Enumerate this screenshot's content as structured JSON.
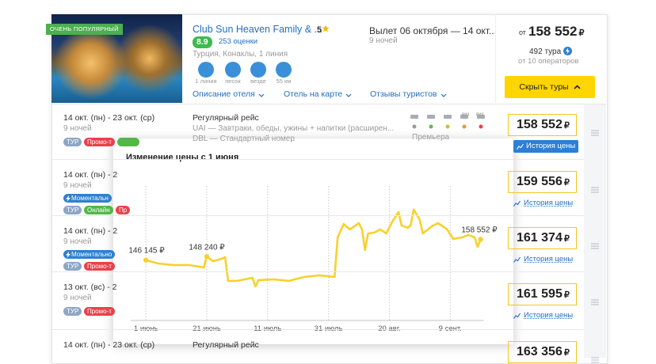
{
  "hotel": {
    "badge": "ОЧЕНЬ ПОПУЛЯРНЫЙ",
    "name": "Club Sun Heaven Family & ...",
    "stars": "5",
    "rating": "8.9",
    "reviews": "253 оценки",
    "location": "Турция, Конаклы, 1 линия",
    "features": [
      "1 линия",
      "песок",
      "везде",
      "55 км"
    ],
    "links": [
      "Описание отеля",
      "Отель на карте",
      "Отзывы туристов"
    ]
  },
  "trip": {
    "dates": "Вылет 06 октября — 14 окт...",
    "nights": "9 ночей"
  },
  "offer": {
    "from": "от",
    "price": "158 552",
    "tours": "492 тура",
    "operators": "от 10 операторов",
    "button": "Скрыть туры"
  },
  "currency": "₽",
  "rows": [
    {
      "dates": "14 окт. (пн) - 23 окт. (ср)",
      "nights": "9 ночей",
      "tags": [
        {
          "text": "ТУР",
          "color": "#8ea6c6"
        },
        {
          "text": "Промо-т",
          "color": "#e8414b"
        },
        {
          "color": "#52b848"
        }
      ],
      "flight": "Регулярный рейс",
      "meal": "UAI — Завтраки, обеды, ужины + напитки (расширен...",
      "room": "DBL — Стандартный номер",
      "icon_labels": [
        "виз",
        "виз"
      ],
      "operator": "Премьера",
      "price": "158 552",
      "history": "История цены"
    },
    {
      "dates": "14 окт. (пн) - 2",
      "nights": "9 ночей",
      "instant": "Моментальн",
      "tags": [
        {
          "text": "ТУР",
          "color": "#8ea6c6"
        },
        {
          "text": "Онлайн",
          "color": "#52b848"
        },
        {
          "text": "Пр",
          "color": "#e8414b"
        }
      ],
      "price": "159 556",
      "history": "История цены"
    },
    {
      "dates": "14 окт. (пн) - 2",
      "nights": "9 ночей",
      "instant": "Моментально",
      "tags": [
        {
          "text": "ТУР",
          "color": "#8ea6c6"
        },
        {
          "text": "Промо-т",
          "color": "#e8414b"
        }
      ],
      "price": "161 374",
      "history": "История цены"
    },
    {
      "dates": "13 окт. (вс) - 2",
      "nights": "9 ночей",
      "tags": [
        {
          "text": "ТУР",
          "color": "#8ea6c6"
        },
        {
          "text": "Промо-т",
          "color": "#e8414b"
        }
      ],
      "price": "161 595",
      "history": "История цены"
    },
    {
      "dates": "14 окт. (пн) - 23 окт. (ср)",
      "flight": "Регулярный рейс",
      "price": "163 356"
    }
  ],
  "chart_data": {
    "type": "line",
    "title": "Изменение цены с 1 июня",
    "color": "#f9d02c",
    "grid": true,
    "x": [
      0,
      4,
      9,
      14,
      19,
      20,
      22,
      25,
      26,
      27,
      30,
      35,
      36,
      37,
      42,
      47,
      52,
      57,
      62,
      63,
      65,
      67,
      70,
      71,
      72,
      73,
      75,
      77,
      79,
      81,
      83,
      84,
      86,
      87,
      88,
      90,
      91,
      94,
      96,
      99,
      101,
      104,
      106,
      108,
      109,
      110
    ],
    "values": [
      146145,
      144100,
      143200,
      143200,
      141800,
      148240,
      145500,
      147000,
      147900,
      133700,
      133700,
      135600,
      130400,
      134200,
      134600,
      133700,
      136100,
      137000,
      136100,
      159800,
      167800,
      164500,
      168300,
      164500,
      152200,
      162100,
      162600,
      164500,
      162100,
      169300,
      174900,
      166900,
      165500,
      166900,
      176400,
      170200,
      162100,
      166400,
      168300,
      164500,
      158800,
      159800,
      161200,
      159800,
      154100,
      158552
    ],
    "value_labels": [
      "146 145 ₽",
      null,
      null,
      null,
      null,
      "148 240 ₽",
      null,
      null,
      null,
      null,
      null,
      null,
      null,
      null,
      null,
      null,
      null,
      null,
      null,
      null,
      null,
      null,
      null,
      null,
      null,
      null,
      null,
      null,
      null,
      null,
      null,
      null,
      null,
      null,
      null,
      null,
      null,
      null,
      null,
      null,
      null,
      null,
      null,
      null,
      null,
      "158 552 ₽"
    ],
    "xlim": [
      -5,
      111
    ],
    "ylim": [
      110000,
      200000
    ],
    "xticks": [
      {
        "value": 0,
        "label": "1 июнь"
      },
      {
        "value": 20,
        "label": "21 июнь"
      },
      {
        "value": 40,
        "label": "11 июль"
      },
      {
        "value": 60,
        "label": "31 июль"
      },
      {
        "value": 80,
        "label": "20 авг."
      },
      {
        "value": 100,
        "label": "9 сент."
      }
    ]
  }
}
